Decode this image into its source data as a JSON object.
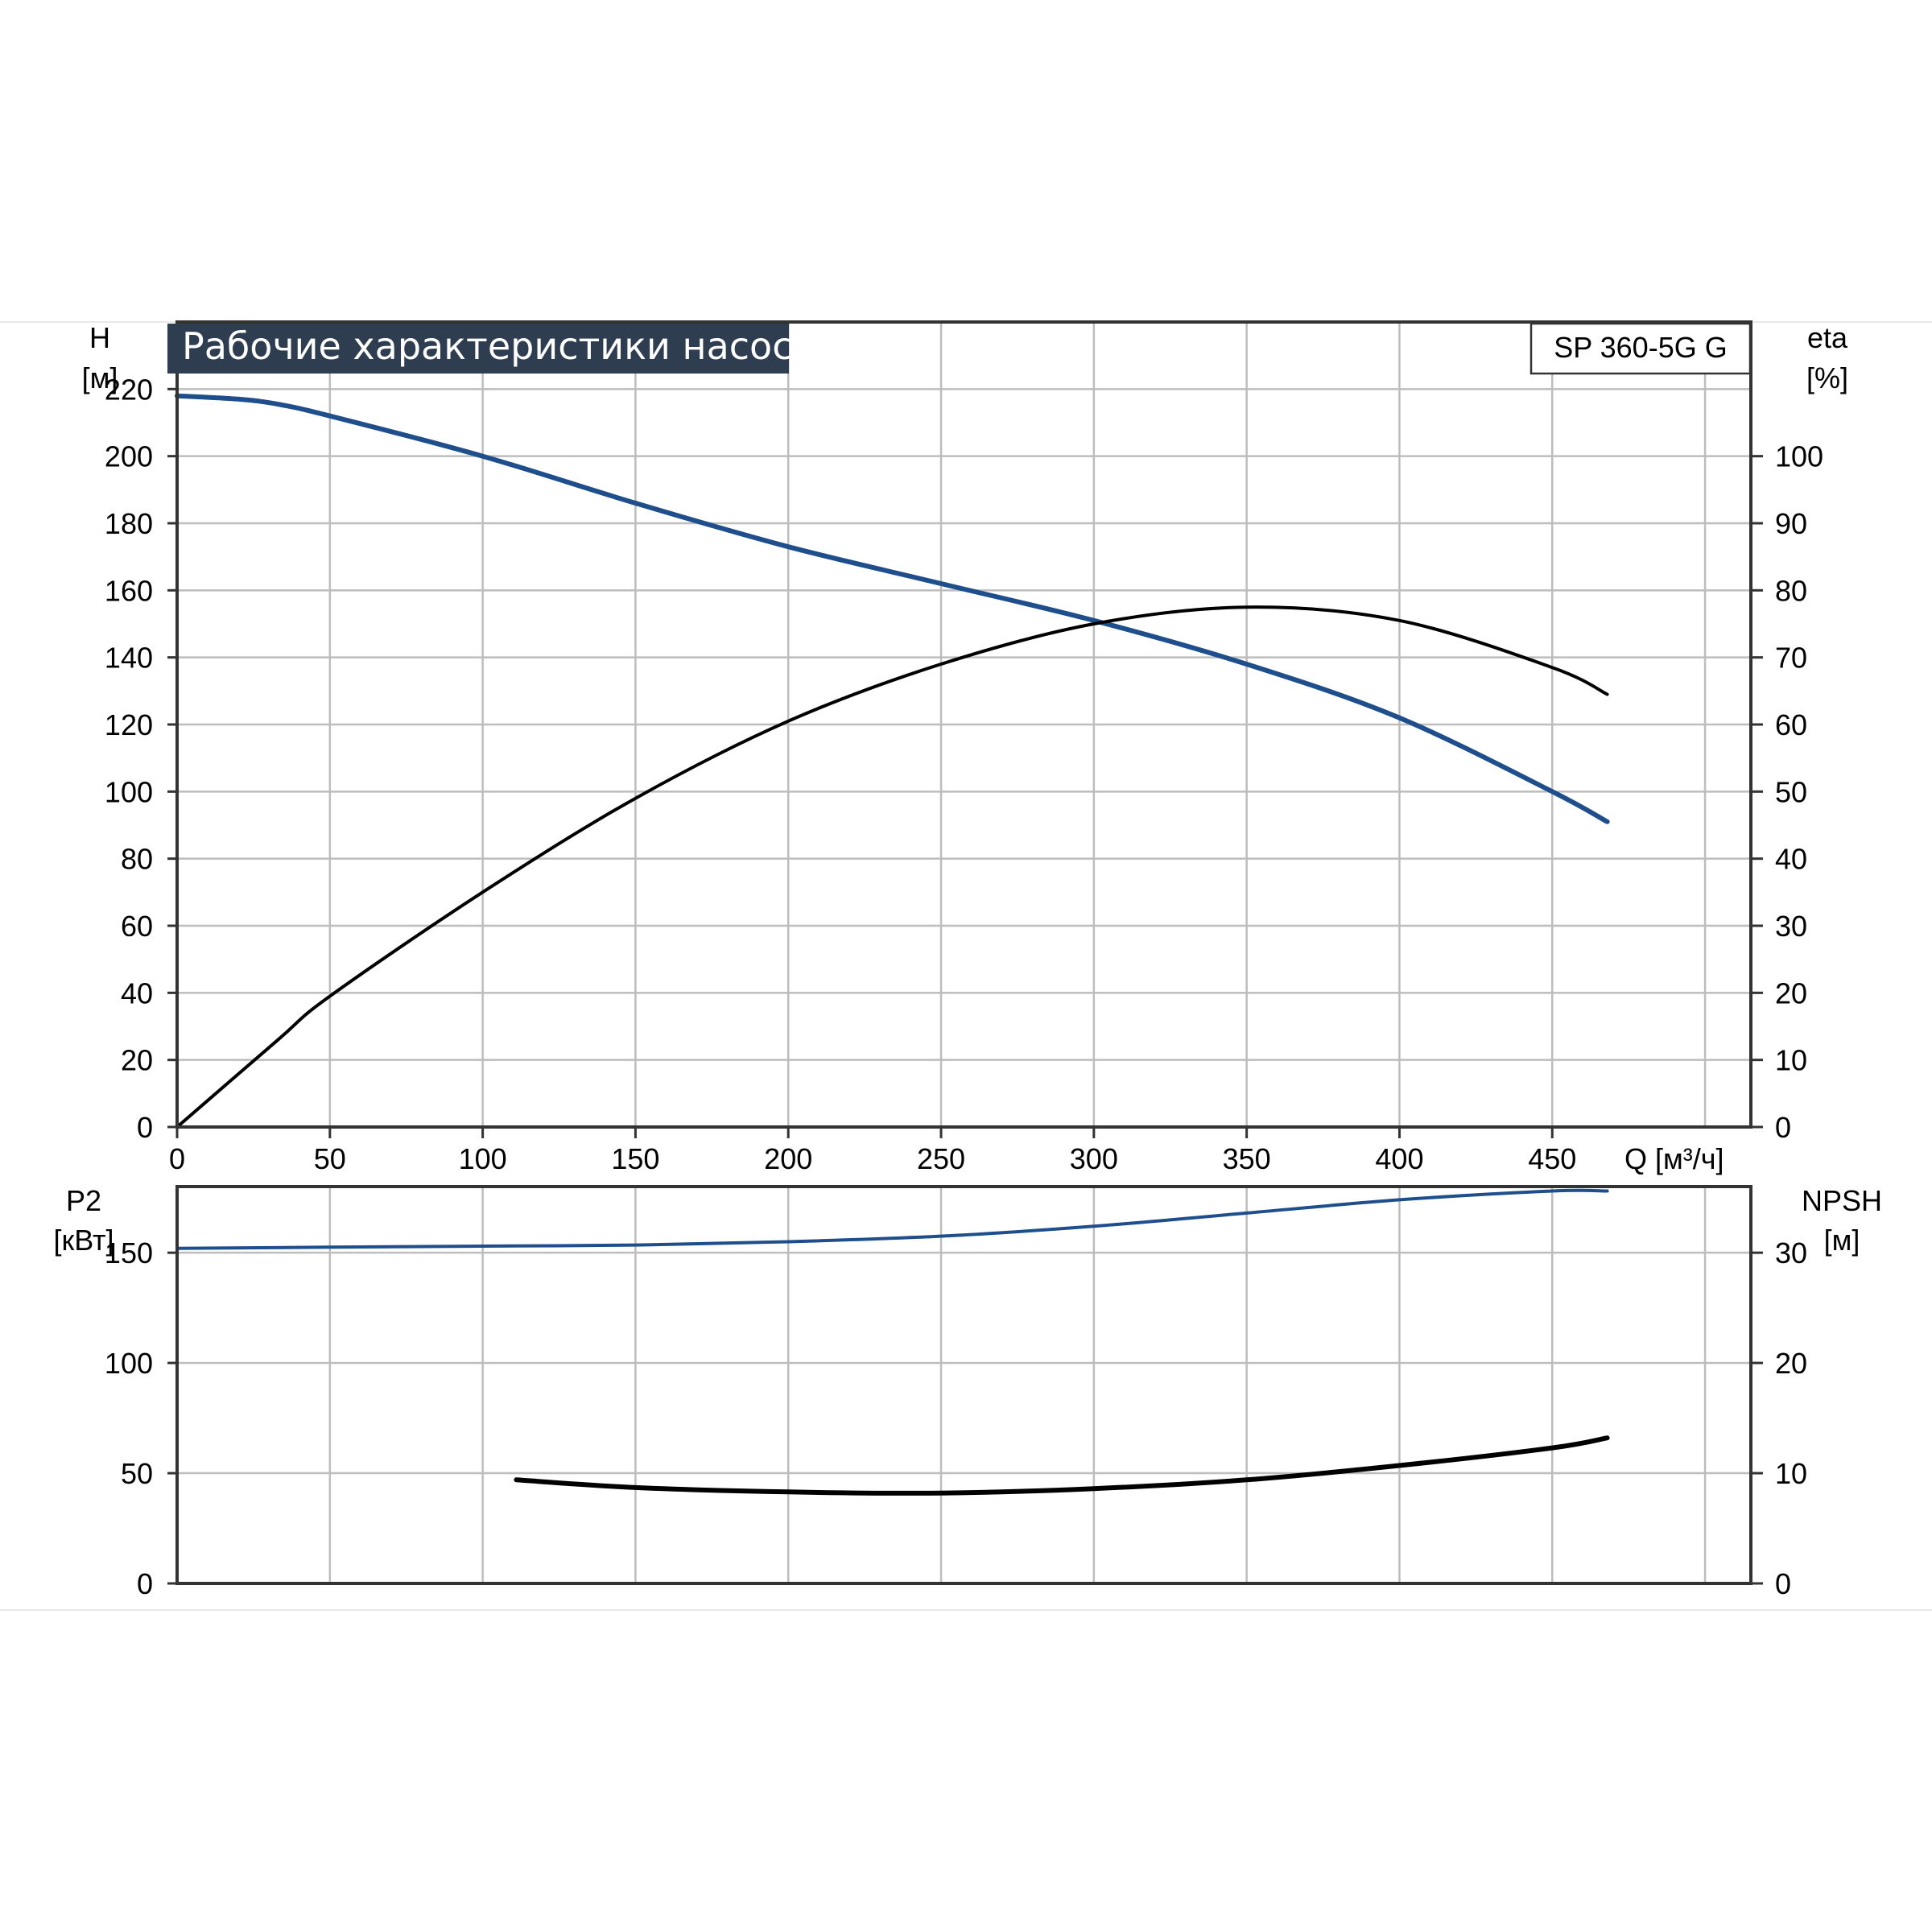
{
  "title": "Рабочие характеристики насоса",
  "model": "SP 360-5G G",
  "colors": {
    "blue_curve": "#1f4e8c",
    "black_curve": "#000000",
    "title_bg": "#2e3d50",
    "grid": "#bdbdbd"
  },
  "chart_data": [
    {
      "type": "line",
      "panel": "performance",
      "xlabel": "Q [м³/ч]",
      "xlim": [
        0,
        515
      ],
      "xticks": [
        0,
        50,
        100,
        150,
        200,
        250,
        300,
        350,
        400,
        450
      ],
      "left_axis": {
        "label_top": "H",
        "label_unit": "[м]",
        "ylim": [
          0,
          240
        ],
        "ticks": [
          0,
          20,
          40,
          60,
          80,
          100,
          120,
          140,
          160,
          180,
          200,
          220
        ]
      },
      "right_axis": {
        "label_top": "eta",
        "label_unit": "[%]",
        "ylim": [
          0,
          120
        ],
        "ticks": [
          0,
          10,
          20,
          30,
          40,
          50,
          60,
          70,
          80,
          90,
          100
        ]
      },
      "grid": true,
      "series": [
        {
          "axis": "left",
          "color": "#1f4e8c",
          "points": [
            [
              0,
              218
            ],
            [
              20,
              217
            ],
            [
              33,
              215.5
            ],
            [
              50,
              212
            ],
            [
              100,
              200
            ],
            [
              150,
              186
            ],
            [
              200,
              173
            ],
            [
              250,
              162
            ],
            [
              300,
              151
            ],
            [
              350,
              138
            ],
            [
              400,
              122
            ],
            [
              450,
              100
            ],
            [
              468,
              91
            ]
          ]
        },
        {
          "axis": "right",
          "color": "#000000",
          "points": [
            [
              0,
              0
            ],
            [
              33,
              13
            ],
            [
              50,
              19.5
            ],
            [
              100,
              35
            ],
            [
              150,
              49
            ],
            [
              200,
              60.5
            ],
            [
              250,
              69
            ],
            [
              300,
              75
            ],
            [
              350,
              77.5
            ],
            [
              400,
              75.5
            ],
            [
              450,
              68.5
            ],
            [
              468,
              64.5
            ]
          ]
        }
      ]
    },
    {
      "type": "line",
      "panel": "power_npsh",
      "xlim": [
        0,
        515
      ],
      "left_axis": {
        "label_top": "P2",
        "label_unit": "[кВт]",
        "ylim": [
          0,
          180
        ],
        "ticks": [
          0,
          50,
          100,
          150
        ]
      },
      "right_axis": {
        "label_top": "NPSH",
        "label_unit": "[м]",
        "ylim": [
          0,
          36
        ],
        "ticks": [
          0,
          10,
          20,
          30
        ]
      },
      "grid": true,
      "series": [
        {
          "axis": "left",
          "color": "#1f4e8c",
          "points": [
            [
              0,
              152
            ],
            [
              50,
              152.5
            ],
            [
              100,
              153
            ],
            [
              150,
              153.5
            ],
            [
              200,
              155
            ],
            [
              250,
              157.5
            ],
            [
              300,
              162
            ],
            [
              350,
              168
            ],
            [
              400,
              174
            ],
            [
              450,
              178
            ],
            [
              468,
              178
            ]
          ]
        },
        {
          "axis": "right",
          "color": "#000000",
          "points": [
            [
              111,
              9.4
            ],
            [
              150,
              8.7
            ],
            [
              200,
              8.3
            ],
            [
              250,
              8.2
            ],
            [
              300,
              8.6
            ],
            [
              350,
              9.4
            ],
            [
              400,
              10.7
            ],
            [
              450,
              12.3
            ],
            [
              468,
              13.2
            ]
          ]
        }
      ]
    }
  ]
}
